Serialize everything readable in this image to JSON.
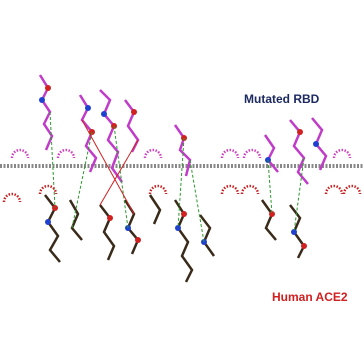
{
  "labels": {
    "top": "Mutated RBD",
    "bottom": "Human ACE2"
  }
}
